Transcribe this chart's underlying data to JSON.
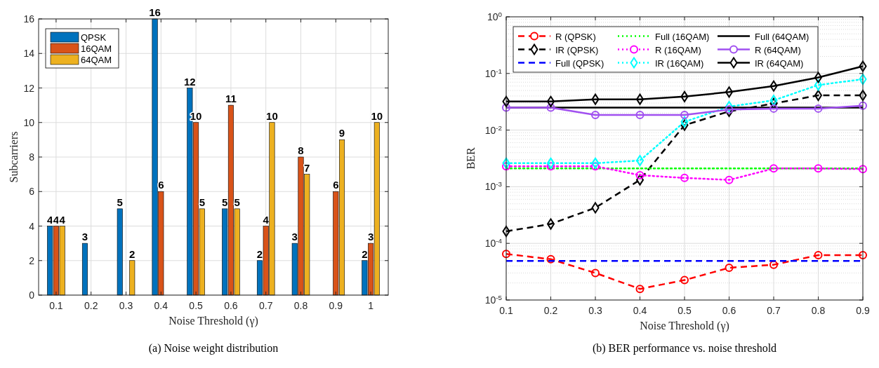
{
  "chart_data": [
    {
      "type": "bar",
      "title": "(a)  Noise weight distribution",
      "xlabel": "Noise Threshold (γ)",
      "ylabel": "Subcarriers",
      "categories": [
        "0.1",
        "0.2",
        "0.3",
        "0.4",
        "0.5",
        "0.6",
        "0.7",
        "0.8",
        "0.9",
        "1"
      ],
      "ylim": [
        0,
        16
      ],
      "yticks": [
        0,
        2,
        4,
        6,
        8,
        10,
        12,
        14,
        16
      ],
      "grid": true,
      "legend": "top left",
      "series": [
        {
          "name": "QPSK",
          "color": "#0072bd",
          "values": [
            4,
            3,
            5,
            16,
            12,
            5,
            2,
            3,
            0,
            2
          ],
          "value_labels": [
            "4",
            "3",
            "5",
            "16",
            "12",
            "5",
            "2",
            "3",
            null,
            "2"
          ]
        },
        {
          "name": "16QAM",
          "color": "#d95319",
          "values": [
            4,
            0,
            0,
            6,
            10,
            11,
            4,
            8,
            6,
            3
          ],
          "value_labels": [
            "4",
            null,
            null,
            "6",
            "10",
            "11",
            "4",
            "8",
            "6",
            "3"
          ]
        },
        {
          "name": "64QAM",
          "color": "#edb120",
          "values": [
            4,
            0,
            2,
            0,
            5,
            5,
            10,
            7,
            9,
            10
          ],
          "value_labels": [
            "4",
            null,
            "2",
            null,
            "5",
            "5",
            "10",
            "7",
            "9",
            "10"
          ]
        }
      ]
    },
    {
      "type": "line",
      "title": "(b)  BER performance vs. noise threshold",
      "xlabel": "Noise Threshold (γ)",
      "ylabel": "BER",
      "log": "y",
      "x": [
        0.1,
        0.2,
        0.3,
        0.4,
        0.5,
        0.6,
        0.7,
        0.8,
        0.9
      ],
      "xlim": [
        0.1,
        0.9
      ],
      "xticks": [
        0.1,
        0.2,
        0.3,
        0.4,
        0.5,
        0.6,
        0.7,
        0.8,
        0.9
      ],
      "ylim": [
        1e-05,
        1
      ],
      "yticks": [
        {
          "value": 1e-05,
          "label": "10$^{-5}$"
        },
        {
          "value": 0.0001,
          "label": "10$^{-4}$"
        },
        {
          "value": 0.001,
          "label": "10$^{-3}$"
        },
        {
          "value": 0.01,
          "label": "10$^{-2}$"
        },
        {
          "value": 0.1,
          "label": "10$^{-1}$"
        },
        {
          "value": 1,
          "label": "10$^{0}$"
        }
      ],
      "grid": true,
      "legend": "top left",
      "series": [
        {
          "name": "R (QPSK)",
          "color": "#ff0000",
          "line_style": "dashed",
          "marker": "circle",
          "values": [
            6.5e-05,
            5.25e-05,
            3e-05,
            1.57e-05,
            2.25e-05,
            3.7e-05,
            4.2e-05,
            6.2e-05,
            6.2e-05
          ]
        },
        {
          "name": "IR (QPSK)",
          "color": "#000000",
          "line_style": "dashed",
          "marker": "diamond",
          "values": [
            0.000163,
            0.00022,
            0.000425,
            0.00132,
            0.0122,
            0.0214,
            0.0295,
            0.041,
            0.041
          ]
        },
        {
          "name": "Full (QPSK)",
          "color": "#0000ff",
          "line_style": "dashed",
          "marker": "none",
          "values": [
            4.9e-05,
            4.9e-05,
            4.9e-05,
            4.9e-05,
            4.9e-05,
            4.9e-05,
            4.9e-05,
            4.9e-05,
            4.9e-05
          ]
        },
        {
          "name": "Full (16QAM)",
          "color": "#00ff00",
          "line_style": "dotted",
          "marker": "none",
          "values": [
            0.0021,
            0.0021,
            0.0021,
            0.0021,
            0.0021,
            0.0021,
            0.0021,
            0.0021,
            0.0021
          ]
        },
        {
          "name": "R (16QAM)",
          "color": "#ff00ff",
          "line_style": "dotted",
          "marker": "circle",
          "values": [
            0.0023,
            0.0023,
            0.0023,
            0.0016,
            0.00143,
            0.00132,
            0.0021,
            0.0021,
            0.00205
          ]
        },
        {
          "name": "IR (16QAM)",
          "color": "#00ffff",
          "line_style": "dotted",
          "marker": "diamond",
          "values": [
            0.0026,
            0.0026,
            0.0026,
            0.0029,
            0.014,
            0.026,
            0.0335,
            0.0625,
            0.079
          ]
        },
        {
          "name": "Full (64QAM)",
          "color": "#000000",
          "line_style": "solid",
          "marker": "none",
          "values": [
            0.025,
            0.025,
            0.025,
            0.025,
            0.025,
            0.025,
            0.025,
            0.025,
            0.025
          ]
        },
        {
          "name": "R (64QAM)",
          "color": "#a150f0",
          "line_style": "solid",
          "marker": "circle",
          "values": [
            0.025,
            0.025,
            0.0185,
            0.0185,
            0.0185,
            0.023,
            0.024,
            0.024,
            0.027
          ]
        },
        {
          "name": "IR (64QAM)",
          "color": "#000000",
          "line_style": "solid",
          "marker": "diamond",
          "values": [
            0.032,
            0.032,
            0.035,
            0.035,
            0.039,
            0.047,
            0.06,
            0.085,
            0.134
          ]
        }
      ]
    }
  ]
}
